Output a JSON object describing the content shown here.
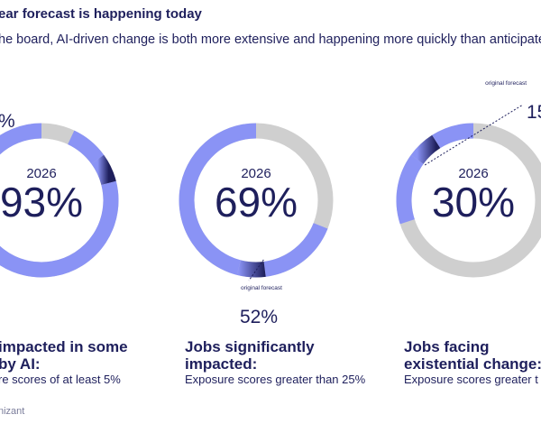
{
  "header": {
    "title": "ear forecast is happening today",
    "subtitle": "he board, AI-driven change is both more extensive and happening more quickly than anticipated."
  },
  "colors": {
    "ring_gray": "#cfcfcf",
    "ring_blue": "#8a93f5",
    "ring_dark": "#1e1f5c",
    "text": "#1e1f5c"
  },
  "chart_data": [
    {
      "type": "pie",
      "variant": "donut",
      "year_label": "2026",
      "value": 93,
      "value_label": "93%",
      "forecast_value": 85,
      "forecast_label": "%",
      "forecast_caption": "",
      "title": "impacted in some",
      "title_line2": "by AI:",
      "subtitle": "re scores of at least 5%"
    },
    {
      "type": "pie",
      "variant": "donut",
      "year_label": "2026",
      "value": 69,
      "value_label": "69%",
      "forecast_value": 52,
      "forecast_label": "52%",
      "forecast_caption": "original forecast",
      "title": "Jobs significantly",
      "title_line2": "impacted:",
      "subtitle": "Exposure scores greater than 25%"
    },
    {
      "type": "pie",
      "variant": "donut",
      "year_label": "2026",
      "value": 30,
      "value_label": "30%",
      "forecast_value": 15,
      "forecast_label": "15%",
      "forecast_caption": "original forecast",
      "title": "Jobs facing",
      "title_line2": "existential change:",
      "subtitle": "Exposure scores greater t"
    }
  ],
  "footer": {
    "brand": "nizant"
  }
}
